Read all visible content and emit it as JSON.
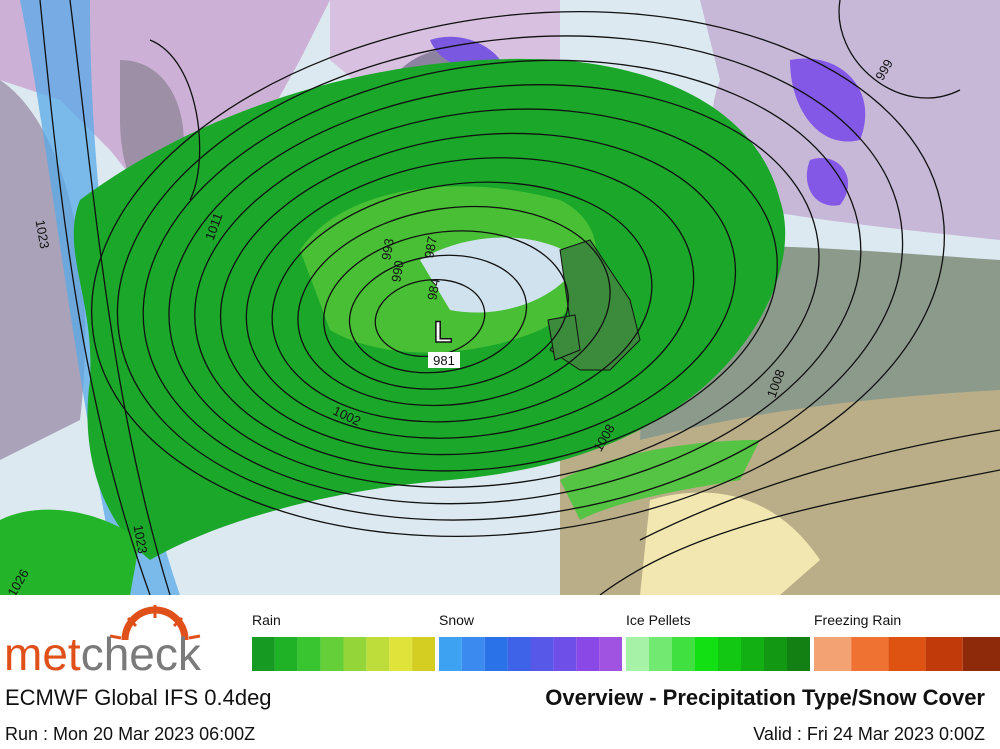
{
  "map": {
    "low": {
      "letter": "L",
      "pressure": "981"
    },
    "isobar_labels": [
      "1023",
      "1011",
      "993",
      "990",
      "987",
      "984",
      "1002",
      "1008",
      "1008",
      "999",
      "1023",
      "1026"
    ]
  },
  "legend": {
    "groups": [
      {
        "label": "Rain",
        "colors": [
          "#169a22",
          "#1fb226",
          "#38c530",
          "#64cf38",
          "#94d53a",
          "#bedc3a",
          "#e0e43a",
          "#d4cd22"
        ]
      },
      {
        "label": "Snow",
        "colors": [
          "#3ea2f2",
          "#3a8af0",
          "#2a72e8",
          "#3e62e8",
          "#5858e8",
          "#6e50e8",
          "#8a48e6",
          "#a052e0"
        ]
      },
      {
        "label": "Ice Pellets",
        "colors": [
          "#a6f2a6",
          "#72ea72",
          "#40e040",
          "#12e012",
          "#12c812",
          "#12b012",
          "#129812",
          "#128012"
        ]
      },
      {
        "label": "Freezing Rain",
        "colors": [
          "#f2a273",
          "#ef7232",
          "#de5212",
          "#c03a0a",
          "#8e2a0a"
        ]
      }
    ]
  },
  "logo": {
    "prefix": "met",
    "suffix": "check"
  },
  "footer": {
    "model": "ECMWF Global IFS 0.4deg",
    "title": "Overview - Precipitation Type/Snow Cover",
    "run": "Run : Mon 20 Mar 2023 06:00Z",
    "valid": "Valid : Fri 24 Mar 2023 0:00Z"
  }
}
